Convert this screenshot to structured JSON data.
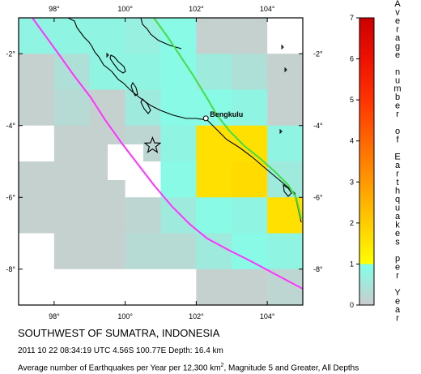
{
  "map": {
    "lon_labels_top": [
      "98°",
      "100°",
      "102°",
      "104°"
    ],
    "lon_labels_bottom": [
      "98°",
      "100°",
      "102°",
      "104°"
    ],
    "lat_labels_left": [
      "-2°",
      "-4°",
      "-6°",
      "-8°"
    ],
    "lat_labels_right": [
      "-2°",
      "-4°",
      "-6°",
      "-8°"
    ],
    "city": "Bengkulu",
    "lon_range": [
      97,
      105
    ],
    "lat_range": [
      -9,
      -1
    ],
    "grid_note": "1x1 degree cells, values in earthquakes per year",
    "cells": [
      {
        "lon": 97,
        "lat": -1,
        "v": 0.8
      },
      {
        "lon": 98,
        "lat": -1,
        "v": 0.8
      },
      {
        "lon": 99,
        "lat": -1,
        "v": 0.8
      },
      {
        "lon": 100,
        "lat": -1,
        "v": 0.7
      },
      {
        "lon": 101,
        "lat": -1,
        "v": 0.9
      },
      {
        "lon": 102,
        "lat": -1,
        "v": 0.1
      },
      {
        "lon": 103,
        "lat": -1,
        "v": 0.1
      },
      {
        "lon": 104,
        "lat": -1,
        "v": null
      },
      {
        "lon": 97,
        "lat": -2,
        "v": 0.1
      },
      {
        "lon": 98,
        "lat": -2,
        "v": 0.4
      },
      {
        "lon": 99,
        "lat": -2,
        "v": 0.8
      },
      {
        "lon": 100,
        "lat": -2,
        "v": 0.8
      },
      {
        "lon": 101,
        "lat": -2,
        "v": 0.9
      },
      {
        "lon": 102,
        "lat": -2,
        "v": 0.6
      },
      {
        "lon": 103,
        "lat": -2,
        "v": 0.4
      },
      {
        "lon": 104,
        "lat": -2,
        "v": 0.1
      },
      {
        "lon": 97,
        "lat": -3,
        "v": 0.1
      },
      {
        "lon": 98,
        "lat": -3,
        "v": 0.3
      },
      {
        "lon": 99,
        "lat": -3,
        "v": 0.1
      },
      {
        "lon": 100,
        "lat": -3,
        "v": 0.6
      },
      {
        "lon": 101,
        "lat": -3,
        "v": 0.9
      },
      {
        "lon": 102,
        "lat": -3,
        "v": 0.9
      },
      {
        "lon": 103,
        "lat": -3,
        "v": 0.8
      },
      {
        "lon": 104,
        "lat": -3,
        "v": 0.1
      },
      {
        "lon": 97,
        "lat": -4,
        "v": null
      },
      {
        "lon": 98,
        "lat": -4,
        "v": 0.1
      },
      {
        "lon": 99,
        "lat": -4,
        "v": 0.1
      },
      {
        "lon": 100,
        "lat": -4,
        "v": 0.2
      },
      {
        "lon": 101,
        "lat": -4,
        "v": 0.8
      },
      {
        "lon": 102,
        "lat": -4,
        "v": 1.6
      },
      {
        "lon": 103,
        "lat": -4,
        "v": 1.6
      },
      {
        "lon": 104,
        "lat": -4,
        "v": 0.8
      },
      {
        "lon": 97,
        "lat": -5,
        "v": 0.1
      },
      {
        "lon": 98,
        "lat": -5,
        "v": 0.1
      },
      {
        "lon": 99,
        "lat": -5,
        "v": 0.1
      },
      {
        "lon": 100,
        "lat": -5,
        "v": null
      },
      {
        "lon": 101,
        "lat": -5,
        "v": 0.9
      },
      {
        "lon": 102,
        "lat": -5,
        "v": 1.6
      },
      {
        "lon": 103,
        "lat": -5,
        "v": 1.7
      },
      {
        "lon": 104,
        "lat": -5,
        "v": 0.6
      },
      {
        "lon": 97,
        "lat": -6,
        "v": 0.1
      },
      {
        "lon": 98,
        "lat": -6,
        "v": 0.1
      },
      {
        "lon": 99,
        "lat": -6,
        "v": 0.1
      },
      {
        "lon": 100,
        "lat": -6,
        "v": 0.2
      },
      {
        "lon": 101,
        "lat": -6,
        "v": 0.6
      },
      {
        "lon": 102,
        "lat": -6,
        "v": 0.9
      },
      {
        "lon": 103,
        "lat": -6,
        "v": 0.8
      },
      {
        "lon": 104,
        "lat": -6,
        "v": 1.6
      },
      {
        "lon": 97,
        "lat": -7,
        "v": null
      },
      {
        "lon": 98,
        "lat": -7,
        "v": 0.1
      },
      {
        "lon": 99,
        "lat": -7,
        "v": 0.1
      },
      {
        "lon": 100,
        "lat": -7,
        "v": 0.3
      },
      {
        "lon": 101,
        "lat": -7,
        "v": 0.3
      },
      {
        "lon": 102,
        "lat": -7,
        "v": 0.6
      },
      {
        "lon": 103,
        "lat": -7,
        "v": 0.9
      },
      {
        "lon": 104,
        "lat": -7,
        "v": 0.8
      },
      {
        "lon": 97,
        "lat": -8,
        "v": null
      },
      {
        "lon": 98,
        "lat": -8,
        "v": null
      },
      {
        "lon": 99,
        "lat": -8,
        "v": null
      },
      {
        "lon": 100,
        "lat": -8,
        "v": null
      },
      {
        "lon": 101,
        "lat": -8,
        "v": null
      },
      {
        "lon": 102,
        "lat": -8,
        "v": 0.1
      },
      {
        "lon": 103,
        "lat": -8,
        "v": 0.1
      },
      {
        "lon": 104,
        "lat": -8,
        "v": 0.2
      }
    ],
    "epicenter": {
      "lon": 100.77,
      "lat": -4.56
    },
    "city_location": {
      "lon": 102.27,
      "lat": -3.8
    },
    "colors": {
      "trench": "#ff33ff",
      "fault": "#44dd44",
      "coast": "#000000",
      "nodata": "#ffffff"
    }
  },
  "colorbar": {
    "title": "Average number of Earthquakes per Year",
    "ticks": [
      "0",
      "1",
      "2",
      "3",
      "4",
      "5",
      "6",
      "7"
    ],
    "stops": [
      {
        "v": 0,
        "color": "#cccccc"
      },
      {
        "v": 1,
        "color": "#80ffe8"
      },
      {
        "v": 1,
        "color": "#ffff00"
      },
      {
        "v": 2,
        "color": "#ffcc00"
      },
      {
        "v": 3,
        "color": "#ff9900"
      },
      {
        "v": 4,
        "color": "#ff6600"
      },
      {
        "v": 5,
        "color": "#ff3300"
      },
      {
        "v": 6,
        "color": "#ee1100"
      },
      {
        "v": 7,
        "color": "#cc0000"
      }
    ]
  },
  "caption": {
    "title": "SOUTHWEST OF SUMATRA, INDONESIA",
    "event": "2011 10 22 08:34:19 UTC 4.56S 100.77E Depth: 16.4 km",
    "desc_prefix": "Average number of Earthquakes per Year per 12,300 km",
    "desc_sup": "2",
    "desc_suffix": ", Magnitude 5 and Greater, All Depths"
  }
}
